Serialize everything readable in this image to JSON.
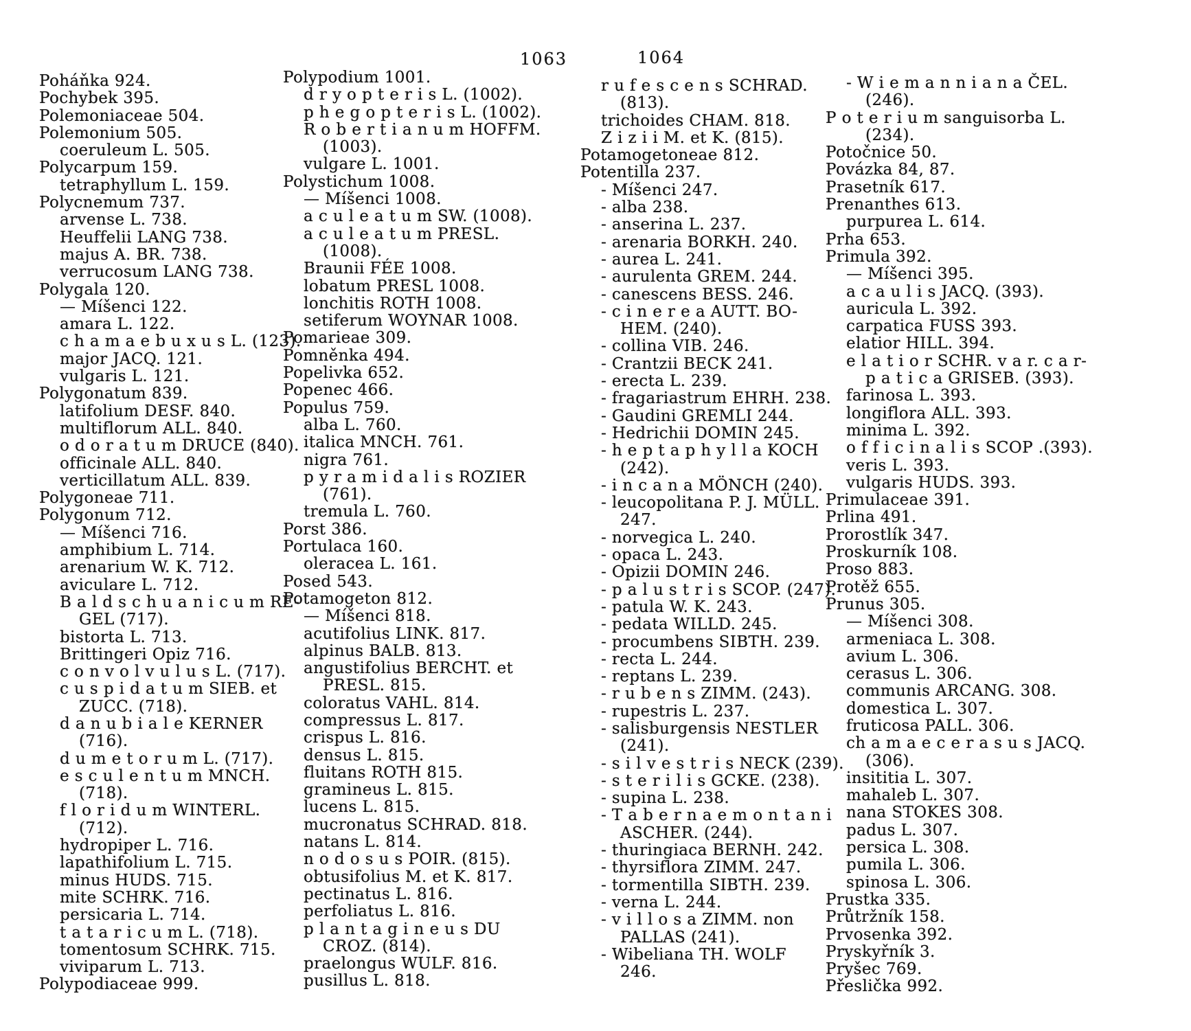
{
  "ink_color": "#161616",
  "paper_color": "#ffffff",
  "pages": [
    {
      "number": "1063"
    },
    {
      "number": "1064"
    }
  ],
  "columns": [
    {
      "lines": [
        {
          "i": 0,
          "t": "Poháňka 924."
        },
        {
          "i": 0,
          "t": "Pochybek 395."
        },
        {
          "i": 0,
          "t": "Polemoniaceae 504."
        },
        {
          "i": 0,
          "t": "Polemonium 505."
        },
        {
          "i": 1,
          "t": "coeruleum L. 505."
        },
        {
          "i": 0,
          "t": "Polycarpum 159."
        },
        {
          "i": 1,
          "t": "tetraphyllum L. 159."
        },
        {
          "i": 0,
          "t": "Polycnemum 737."
        },
        {
          "i": 1,
          "t": "arvense L. 738."
        },
        {
          "i": 1,
          "t": "Heuffelii LANG 738."
        },
        {
          "i": 1,
          "t": "majus A. BR. 738."
        },
        {
          "i": 1,
          "t": "verrucosum LANG 738."
        },
        {
          "i": 0,
          "t": "Polygala 120."
        },
        {
          "i": 1,
          "t": "— Míšenci 122."
        },
        {
          "i": 1,
          "t": "amara L. 122."
        },
        {
          "i": 1,
          "t": "c h a m a e b u x u s L. (123)."
        },
        {
          "i": 1,
          "t": "major JACQ. 121."
        },
        {
          "i": 1,
          "t": "vulgaris L. 121."
        },
        {
          "i": 0,
          "t": "Polygonatum 839."
        },
        {
          "i": 1,
          "t": "latifolium DESF. 840."
        },
        {
          "i": 1,
          "t": "multiflorum ALL. 840."
        },
        {
          "i": 1,
          "t": "o d o r a t u m DRUCE (840)."
        },
        {
          "i": 1,
          "t": "officinale ALL. 840."
        },
        {
          "i": 1,
          "t": "verticillatum ALL. 839."
        },
        {
          "i": 0,
          "t": "Polygoneae 711."
        },
        {
          "i": 0,
          "t": "Polygonum 712."
        },
        {
          "i": 1,
          "t": "— Míšenci 716."
        },
        {
          "i": 1,
          "t": "amphibium L. 714."
        },
        {
          "i": 1,
          "t": "arenarium W. K. 712."
        },
        {
          "i": 1,
          "t": "aviculare L. 712."
        },
        {
          "i": 1,
          "t": "B a l d s c h u a n i c u m RE-"
        },
        {
          "i": 2,
          "t": "GEL (717)."
        },
        {
          "i": 1,
          "t": "bistorta L. 713."
        },
        {
          "i": 1,
          "t": "Brittingeri Opiz 716."
        },
        {
          "i": 1,
          "t": "c o n v o l v u l u s L. (717)."
        },
        {
          "i": 1,
          "t": "c u s p i d a t u m SIEB. et"
        },
        {
          "i": 2,
          "t": "ZUCC. (718)."
        },
        {
          "i": 1,
          "t": "d a n u b i a l e KERNER"
        },
        {
          "i": 2,
          "t": "(716)."
        },
        {
          "i": 1,
          "t": "d u m e t o r u m L. (717)."
        },
        {
          "i": 1,
          "t": "e s c u l e n t u m MNCH."
        },
        {
          "i": 2,
          "t": "(718)."
        },
        {
          "i": 1,
          "t": "f l o r i d u m WINTERL."
        },
        {
          "i": 2,
          "t": "(712)."
        },
        {
          "i": 1,
          "t": "hydropiper L. 716."
        },
        {
          "i": 1,
          "t": "lapathifolium L. 715."
        },
        {
          "i": 1,
          "t": "minus HUDS. 715."
        },
        {
          "i": 1,
          "t": "mite SCHRK. 716."
        },
        {
          "i": 1,
          "t": "persicaria L. 714."
        },
        {
          "i": 1,
          "t": "t a t a r i c u m L. (718)."
        },
        {
          "i": 1,
          "t": "tomentosum SCHRK. 715."
        },
        {
          "i": 1,
          "t": "viviparum L. 713."
        },
        {
          "i": 0,
          "t": "Polypodiaceae 999."
        }
      ]
    },
    {
      "lines": [
        {
          "i": 0,
          "t": "Polypodium 1001."
        },
        {
          "i": 1,
          "t": "d r y o p t e r i s L. (1002)."
        },
        {
          "i": 1,
          "t": "p h e g o p t e r i s L. (1002)."
        },
        {
          "i": 1,
          "t": "R o b e r t i a n u m HOFFM."
        },
        {
          "i": 2,
          "t": "(1003)."
        },
        {
          "i": 1,
          "t": "vulgare L. 1001."
        },
        {
          "i": 0,
          "t": "Polystichum 1008."
        },
        {
          "i": 1,
          "t": "— Míšenci 1008."
        },
        {
          "i": 1,
          "t": "a c u l e a t u m SW. (1008)."
        },
        {
          "i": 1,
          "t": "a c u l e a t u m PRESL."
        },
        {
          "i": 2,
          "t": "(1008)."
        },
        {
          "i": 1,
          "t": "Braunii FÉE 1008."
        },
        {
          "i": 1,
          "t": "lobatum PRESL 1008."
        },
        {
          "i": 1,
          "t": "lonchitis ROTH 1008."
        },
        {
          "i": 1,
          "t": "setiferum WOYNAR 1008."
        },
        {
          "i": 0,
          "t": "Pomarieae 309."
        },
        {
          "i": 0,
          "t": "Pomněnka 494."
        },
        {
          "i": 0,
          "t": "Popelivka 652."
        },
        {
          "i": 0,
          "t": "Popenec 466."
        },
        {
          "i": 0,
          "t": "Populus 759."
        },
        {
          "i": 1,
          "t": "alba L. 760."
        },
        {
          "i": 1,
          "t": "italica MNCH. 761."
        },
        {
          "i": 1,
          "t": "nigra 761."
        },
        {
          "i": 1,
          "t": "p y r a m i d a l i s ROZIER"
        },
        {
          "i": 2,
          "t": "(761)."
        },
        {
          "i": 1,
          "t": "tremula L. 760."
        },
        {
          "i": 0,
          "t": "Porst 386."
        },
        {
          "i": 0,
          "t": "Portulaca 160."
        },
        {
          "i": 1,
          "t": "oleracea L. 161."
        },
        {
          "i": 0,
          "t": "Posed 543."
        },
        {
          "i": 0,
          "t": "Potamogeton 812."
        },
        {
          "i": 1,
          "t": "— Míšenci 818."
        },
        {
          "i": 1,
          "t": "acutifolius LINK. 817."
        },
        {
          "i": 1,
          "t": "alpinus BALB. 813."
        },
        {
          "i": 1,
          "t": "angustifolius BERCHT. et"
        },
        {
          "i": 2,
          "t": "PRESL. 815."
        },
        {
          "i": 1,
          "t": "coloratus VAHL. 814."
        },
        {
          "i": 1,
          "t": "compressus L. 817."
        },
        {
          "i": 1,
          "t": "crispus L. 816."
        },
        {
          "i": 1,
          "t": "densus L. 815."
        },
        {
          "i": 1,
          "t": "fluitans ROTH 815."
        },
        {
          "i": 1,
          "t": "gramineus L. 815."
        },
        {
          "i": 1,
          "t": "lucens L. 815."
        },
        {
          "i": 1,
          "t": "mucronatus SCHRAD. 818."
        },
        {
          "i": 1,
          "t": "natans L. 814."
        },
        {
          "i": 1,
          "t": "n o d o s u s POIR. (815)."
        },
        {
          "i": 1,
          "t": "obtusifolius M. et K. 817."
        },
        {
          "i": 1,
          "t": "pectinatus L. 816."
        },
        {
          "i": 1,
          "t": "perfoliatus L. 816."
        },
        {
          "i": 1,
          "t": "p l a n t a g i n e u s DU"
        },
        {
          "i": 2,
          "t": "CROZ. (814)."
        },
        {
          "i": 1,
          "t": "praelongus WULF. 816."
        },
        {
          "i": 1,
          "t": "pusillus L. 818."
        }
      ]
    },
    {
      "lines": [
        {
          "i": 1,
          "t": "r u f e s c e n s SCHRAD."
        },
        {
          "i": 2,
          "t": "(813)."
        },
        {
          "i": 1,
          "t": "trichoides CHAM. 818."
        },
        {
          "i": 1,
          "t": "Z i z i i M. et K. (815)."
        },
        {
          "i": 0,
          "t": "Potamogetoneae 812."
        },
        {
          "i": 0,
          "t": "Potentilla 237."
        },
        {
          "i": 1,
          "t": "- Míšenci 247."
        },
        {
          "i": 1,
          "t": "- alba 238."
        },
        {
          "i": 1,
          "t": "- anserina L. 237."
        },
        {
          "i": 1,
          "t": "- arenaria BORKH. 240."
        },
        {
          "i": 1,
          "t": "- aurea L. 241."
        },
        {
          "i": 1,
          "t": "- aurulenta GREM. 244."
        },
        {
          "i": 1,
          "t": "- canescens BESS. 246."
        },
        {
          "i": 1,
          "t": "- c i n e r e a AUTT. BO-"
        },
        {
          "i": 2,
          "t": "HEM. (240)."
        },
        {
          "i": 1,
          "t": "- collina VIB. 246."
        },
        {
          "i": 1,
          "t": "- Crantzii BECK 241."
        },
        {
          "i": 1,
          "t": "- erecta L. 239."
        },
        {
          "i": 1,
          "t": "- fragariastrum EHRH. 238."
        },
        {
          "i": 1,
          "t": "- Gaudini GREMLI 244."
        },
        {
          "i": 1,
          "t": "- Hedrichii DOMIN 245."
        },
        {
          "i": 1,
          "t": "- h e p t a p h y l l a KOCH"
        },
        {
          "i": 2,
          "t": "(242)."
        },
        {
          "i": 1,
          "t": "- i n c a n a MÖNCH (240)."
        },
        {
          "i": 1,
          "t": "- leucopolitana P. J. MÜLL."
        },
        {
          "i": 2,
          "t": "247."
        },
        {
          "i": 1,
          "t": "- norvegica L. 240."
        },
        {
          "i": 1,
          "t": "- opaca L. 243."
        },
        {
          "i": 1,
          "t": "- Opizii DOMIN 246."
        },
        {
          "i": 1,
          "t": "- p a l u s t r i s SCOP. (247)."
        },
        {
          "i": 1,
          "t": "- patula W. K. 243."
        },
        {
          "i": 1,
          "t": "- pedata WILLD. 245."
        },
        {
          "i": 1,
          "t": "- procumbens SIBTH. 239."
        },
        {
          "i": 1,
          "t": "- recta L. 244."
        },
        {
          "i": 1,
          "t": "- reptans L. 239."
        },
        {
          "i": 1,
          "t": "- r u b e n s ZIMM. (243)."
        },
        {
          "i": 1,
          "t": "- rupestris L. 237."
        },
        {
          "i": 1,
          "t": "- salisburgensis NESTLER"
        },
        {
          "i": 2,
          "t": "(241)."
        },
        {
          "i": 1,
          "t": "- s i l v e s t r i s NECK (239)."
        },
        {
          "i": 1,
          "t": "- s t e r i l i s GCKE. (238)."
        },
        {
          "i": 1,
          "t": "- supina L. 238."
        },
        {
          "i": 1,
          "t": "- T a b e r n a e m o n t a n i"
        },
        {
          "i": 2,
          "t": "ASCHER. (244)."
        },
        {
          "i": 1,
          "t": "- thuringiaca BERNH. 242."
        },
        {
          "i": 1,
          "t": "- thyrsiflora ZIMM. 247."
        },
        {
          "i": 1,
          "t": "- tormentilla SIBTH. 239."
        },
        {
          "i": 1,
          "t": "- verna L. 244."
        },
        {
          "i": 1,
          "t": "- v i l l o s a ZIMM. non"
        },
        {
          "i": 2,
          "t": "PALLAS (241)."
        },
        {
          "i": 1,
          "t": "- Wibeliana TH. WOLF"
        },
        {
          "i": 2,
          "t": "246."
        }
      ]
    },
    {
      "lines": [
        {
          "i": 1,
          "t": "- W i e m a n n i a n a ČEL."
        },
        {
          "i": 2,
          "t": "(246)."
        },
        {
          "i": 0,
          "t": "P o t e r i u m sanguisorba L."
        },
        {
          "i": 2,
          "t": "(234)."
        },
        {
          "i": 0,
          "t": "Potočnice 50."
        },
        {
          "i": 0,
          "t": "Povázka 84, 87."
        },
        {
          "i": 0,
          "t": "Prasetník 617."
        },
        {
          "i": 0,
          "t": "Prenanthes 613."
        },
        {
          "i": 1,
          "t": "purpurea L. 614."
        },
        {
          "i": 0,
          "t": "Prha 653."
        },
        {
          "i": 0,
          "t": "Primula 392."
        },
        {
          "i": 1,
          "t": "— Míšenci 395."
        },
        {
          "i": 1,
          "t": "a c a u l i s JACQ. (393)."
        },
        {
          "i": 1,
          "t": "auricula L. 392."
        },
        {
          "i": 1,
          "t": "carpatica FUSS 393."
        },
        {
          "i": 1,
          "t": "elatior HILL. 394."
        },
        {
          "i": 1,
          "t": "e l a t i o r SCHR. v a r. c a r-"
        },
        {
          "i": 2,
          "t": "p a t i c a GRISEB. (393)."
        },
        {
          "i": 1,
          "t": "farinosa L. 393."
        },
        {
          "i": 1,
          "t": "longiflora ALL. 393."
        },
        {
          "i": 1,
          "t": "minima L. 392."
        },
        {
          "i": 1,
          "t": "o f f i c i n a l i s SCOP .(393)."
        },
        {
          "i": 1,
          "t": "veris L. 393."
        },
        {
          "i": 1,
          "t": "vulgaris HUDS. 393."
        },
        {
          "i": 0,
          "t": "Primulaceae 391."
        },
        {
          "i": 0,
          "t": "Prlina 491."
        },
        {
          "i": 0,
          "t": "Prorostlík 347."
        },
        {
          "i": 0,
          "t": "Proskurník 108."
        },
        {
          "i": 0,
          "t": "Proso 883."
        },
        {
          "i": 0,
          "t": "Protěž 655."
        },
        {
          "i": 0,
          "t": "Prunus 305."
        },
        {
          "i": 1,
          "t": "— Míšenci 308."
        },
        {
          "i": 1,
          "t": "armeniaca L. 308."
        },
        {
          "i": 1,
          "t": "avium L. 306."
        },
        {
          "i": 1,
          "t": "cerasus L. 306."
        },
        {
          "i": 1,
          "t": "communis ARCANG. 308."
        },
        {
          "i": 1,
          "t": "domestica L. 307."
        },
        {
          "i": 1,
          "t": "fruticosa PALL. 306."
        },
        {
          "i": 1,
          "t": "ch a m a e c e r a s u s JACQ."
        },
        {
          "i": 2,
          "t": "(306)."
        },
        {
          "i": 1,
          "t": "insititia L. 307."
        },
        {
          "i": 1,
          "t": "mahaleb L. 307."
        },
        {
          "i": 1,
          "t": "nana STOKES 308."
        },
        {
          "i": 1,
          "t": "padus L. 307."
        },
        {
          "i": 1,
          "t": "persica L. 308."
        },
        {
          "i": 1,
          "t": "pumila L. 306."
        },
        {
          "i": 1,
          "t": "spinosa L. 306."
        },
        {
          "i": 0,
          "t": "Prustka 335."
        },
        {
          "i": 0,
          "t": "Průtržník 158."
        },
        {
          "i": 0,
          "t": "Prvosenka 392."
        },
        {
          "i": 0,
          "t": "Pryskyřník 3."
        },
        {
          "i": 0,
          "t": "Pryšec 769."
        },
        {
          "i": 0,
          "t": "Přeslička 992."
        }
      ]
    }
  ]
}
